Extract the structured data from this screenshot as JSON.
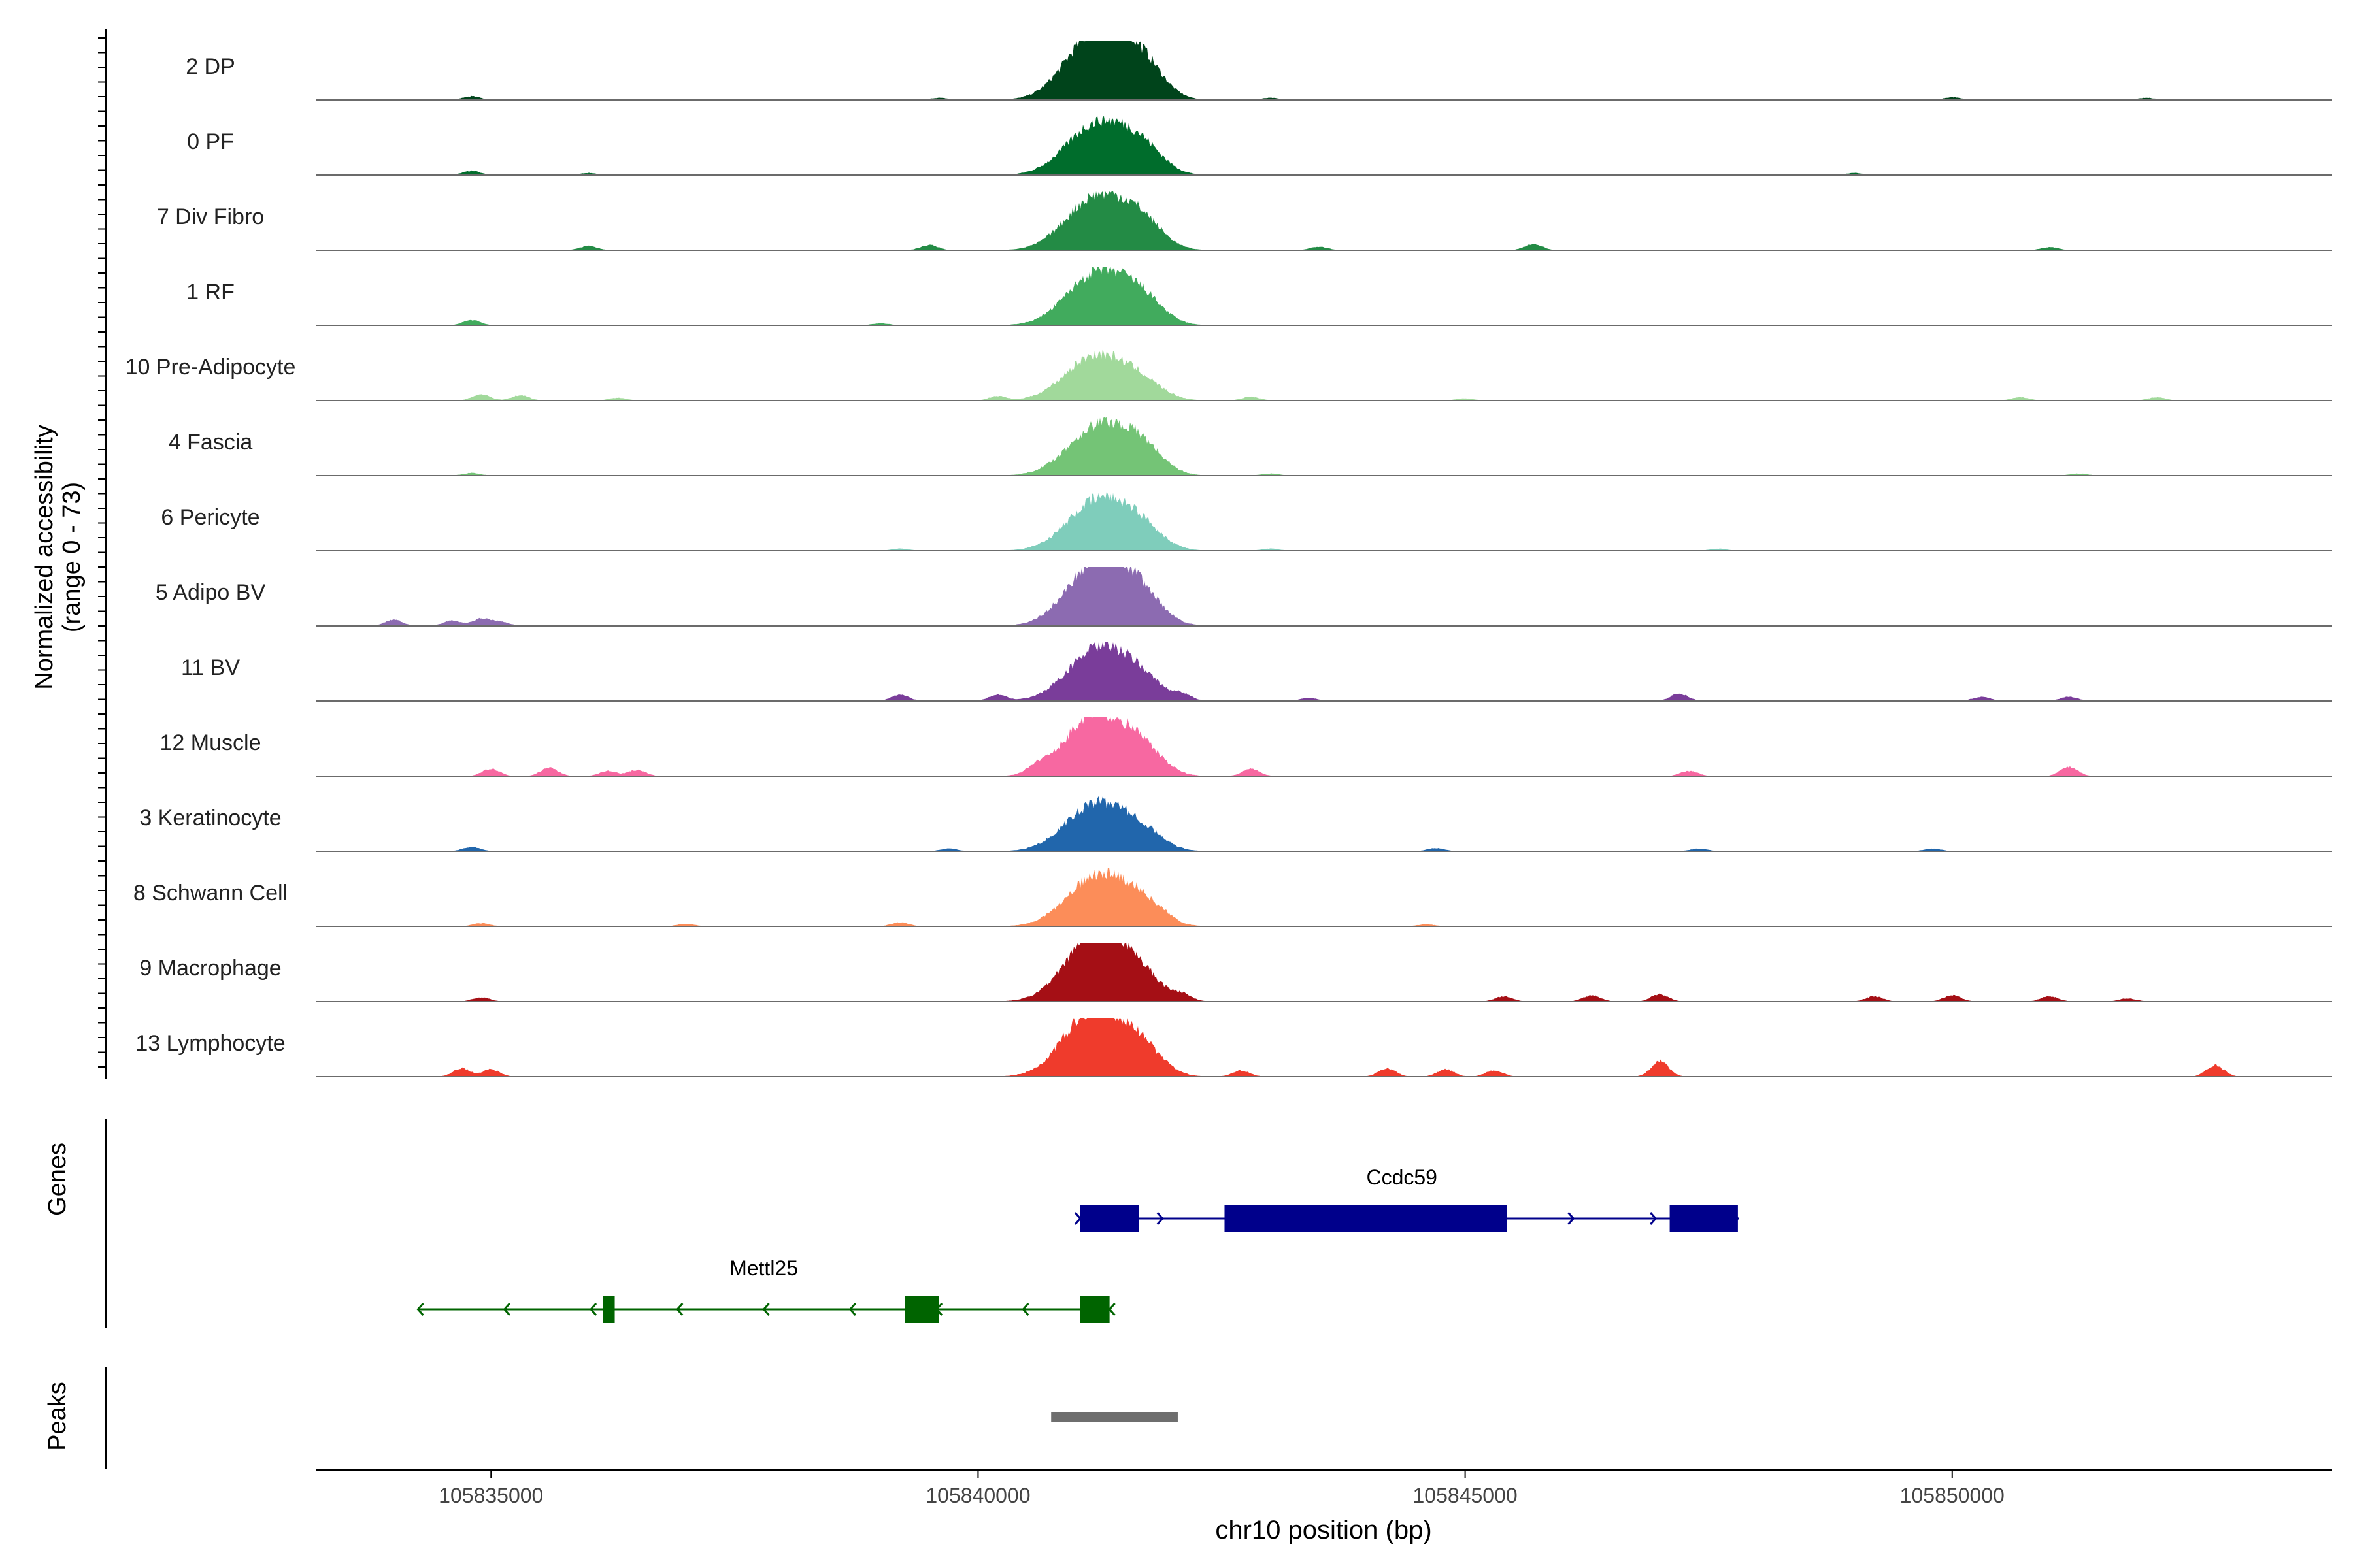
{
  "chart_data": {
    "type": "area",
    "title": "",
    "chromosome": "chr10",
    "xlabel": "chr10 position (bp)",
    "ylabel": "Normalized accessibility",
    "ylabel_range": "(range 0 - 73)",
    "xlim": [
      105833200,
      105853900
    ],
    "ylim": [
      0,
      73
    ],
    "x_ticks": [
      {
        "value": 105835000,
        "label": "105835000"
      },
      {
        "value": 105840000,
        "label": "105840000"
      },
      {
        "value": 105845000,
        "label": "105845000"
      },
      {
        "value": 105850000,
        "label": "105850000"
      }
    ],
    "peak_positions": [
      105841080,
      105841350,
      105841700
    ],
    "tracks": [
      {
        "label": "2 DP",
        "color": "#00441b",
        "heights": [
          0.55,
          0.95,
          0.45
        ],
        "bg": [
          [
            105834800,
            0.07
          ],
          [
            105839600,
            0.04
          ],
          [
            105843000,
            0.04
          ],
          [
            105850000,
            0.05
          ],
          [
            105852000,
            0.04
          ]
        ]
      },
      {
        "label": "0 PF",
        "color": "#006d2c",
        "heights": [
          0.42,
          0.7,
          0.35
        ],
        "bg": [
          [
            105834800,
            0.08
          ],
          [
            105836000,
            0.04
          ],
          [
            105849000,
            0.04
          ]
        ]
      },
      {
        "label": "7 Div Fibro",
        "color": "#238b45",
        "heights": [
          0.45,
          0.72,
          0.35
        ],
        "bg": [
          [
            105836000,
            0.08
          ],
          [
            105839500,
            0.1
          ],
          [
            105843500,
            0.07
          ],
          [
            105845700,
            0.12
          ],
          [
            105851000,
            0.06
          ]
        ]
      },
      {
        "label": "1 RF",
        "color": "#41ab5d",
        "heights": [
          0.42,
          0.72,
          0.32
        ],
        "bg": [
          [
            105834800,
            0.1
          ],
          [
            105839000,
            0.04
          ]
        ]
      },
      {
        "label": "10 Pre-Adipocyte",
        "color": "#a1d99b",
        "heights": [
          0.42,
          0.55,
          0.2
        ],
        "bg": [
          [
            105834900,
            0.12
          ],
          [
            105835300,
            0.1
          ],
          [
            105836300,
            0.05
          ],
          [
            105840200,
            0.08
          ],
          [
            105842800,
            0.07
          ],
          [
            105845000,
            0.04
          ],
          [
            105850700,
            0.06
          ],
          [
            105852100,
            0.06
          ]
        ]
      },
      {
        "label": "4 Fascia",
        "color": "#74c476",
        "heights": [
          0.35,
          0.72,
          0.35
        ],
        "bg": [
          [
            105834800,
            0.05
          ],
          [
            105843000,
            0.04
          ],
          [
            105851300,
            0.04
          ]
        ]
      },
      {
        "label": "6 Pericyte",
        "color": "#7fcdbb",
        "heights": [
          0.35,
          0.75,
          0.25
        ],
        "bg": [
          [
            105839200,
            0.04
          ],
          [
            105843000,
            0.04
          ],
          [
            105847600,
            0.04
          ]
        ]
      },
      {
        "label": "5 Adipo BV",
        "color": "#8c6bb1",
        "heights": [
          0.45,
          1.0,
          0.3
        ],
        "bg": [
          [
            105834000,
            0.12
          ],
          [
            105834600,
            0.1
          ],
          [
            105834900,
            0.14
          ],
          [
            105835100,
            0.08
          ]
        ]
      },
      {
        "label": "11 BV",
        "color": "#7a3d9a",
        "heights": [
          0.38,
          0.75,
          0.22
        ],
        "bg": [
          [
            105839200,
            0.12
          ],
          [
            105840200,
            0.12
          ],
          [
            105842100,
            0.1
          ],
          [
            105843400,
            0.06
          ],
          [
            105847200,
            0.14
          ],
          [
            105850300,
            0.08
          ],
          [
            105851200,
            0.08
          ]
        ]
      },
      {
        "label": "12 Muscle",
        "color": "#f768a1",
        "heights": [
          0.6,
          0.72,
          0.32
        ],
        "bg": [
          [
            105835000,
            0.14
          ],
          [
            105835600,
            0.16
          ],
          [
            105836200,
            0.1
          ],
          [
            105836500,
            0.12
          ],
          [
            105840600,
            0.12
          ],
          [
            105842800,
            0.14
          ],
          [
            105847300,
            0.1
          ],
          [
            105851200,
            0.18
          ]
        ]
      },
      {
        "label": "3 Keratinocyte",
        "color": "#2166ac",
        "heights": [
          0.42,
          0.6,
          0.22
        ],
        "bg": [
          [
            105834800,
            0.08
          ],
          [
            105839700,
            0.05
          ],
          [
            105844700,
            0.06
          ],
          [
            105847400,
            0.05
          ],
          [
            105849800,
            0.05
          ]
        ]
      },
      {
        "label": "8 Schwann Cell",
        "color": "#fc8d59",
        "heights": [
          0.38,
          0.72,
          0.25
        ],
        "bg": [
          [
            105834900,
            0.06
          ],
          [
            105837000,
            0.05
          ],
          [
            105839200,
            0.08
          ],
          [
            105841900,
            0.05
          ],
          [
            105844600,
            0.04
          ]
        ]
      },
      {
        "label": "9 Macrophage",
        "color": "#a50f15",
        "heights": [
          0.55,
          0.95,
          0.22
        ],
        "bg": [
          [
            105834900,
            0.08
          ],
          [
            105842100,
            0.1
          ],
          [
            105845400,
            0.1
          ],
          [
            105846300,
            0.12
          ],
          [
            105847000,
            0.14
          ],
          [
            105849200,
            0.1
          ],
          [
            105850000,
            0.12
          ],
          [
            105851000,
            0.1
          ],
          [
            105851800,
            0.06
          ]
        ]
      },
      {
        "label": "13 Lymphocyte",
        "color": "#ef3b2c",
        "heights": [
          0.7,
          0.75,
          0.32
        ],
        "bg": [
          [
            105834700,
            0.16
          ],
          [
            105835000,
            0.14
          ],
          [
            105842700,
            0.12
          ],
          [
            105844200,
            0.16
          ],
          [
            105844800,
            0.14
          ],
          [
            105845300,
            0.12
          ],
          [
            105847000,
            0.3
          ],
          [
            105852700,
            0.22
          ]
        ]
      }
    ],
    "panel_labels": {
      "genes": "Genes",
      "peaks": "Peaks"
    },
    "genes": [
      {
        "name": "Ccdc59",
        "strand": "+",
        "color": "#00008b",
        "row": 0,
        "start": 105841050,
        "end": 105847800,
        "exons": [
          [
            105841050,
            105841650
          ],
          [
            105842530,
            105845430
          ],
          [
            105847100,
            105847800
          ]
        ]
      },
      {
        "name": "Mettl25",
        "strand": "-",
        "color": "#006400",
        "row": 1,
        "start": 105834250,
        "end": 105841350,
        "exons": [
          [
            105836150,
            105836270
          ],
          [
            105839250,
            105839600
          ],
          [
            105841050,
            105841350
          ]
        ]
      }
    ],
    "peaks": [
      {
        "start": 105840750,
        "end": 105842050,
        "color": "#6e6e6e"
      }
    ]
  }
}
